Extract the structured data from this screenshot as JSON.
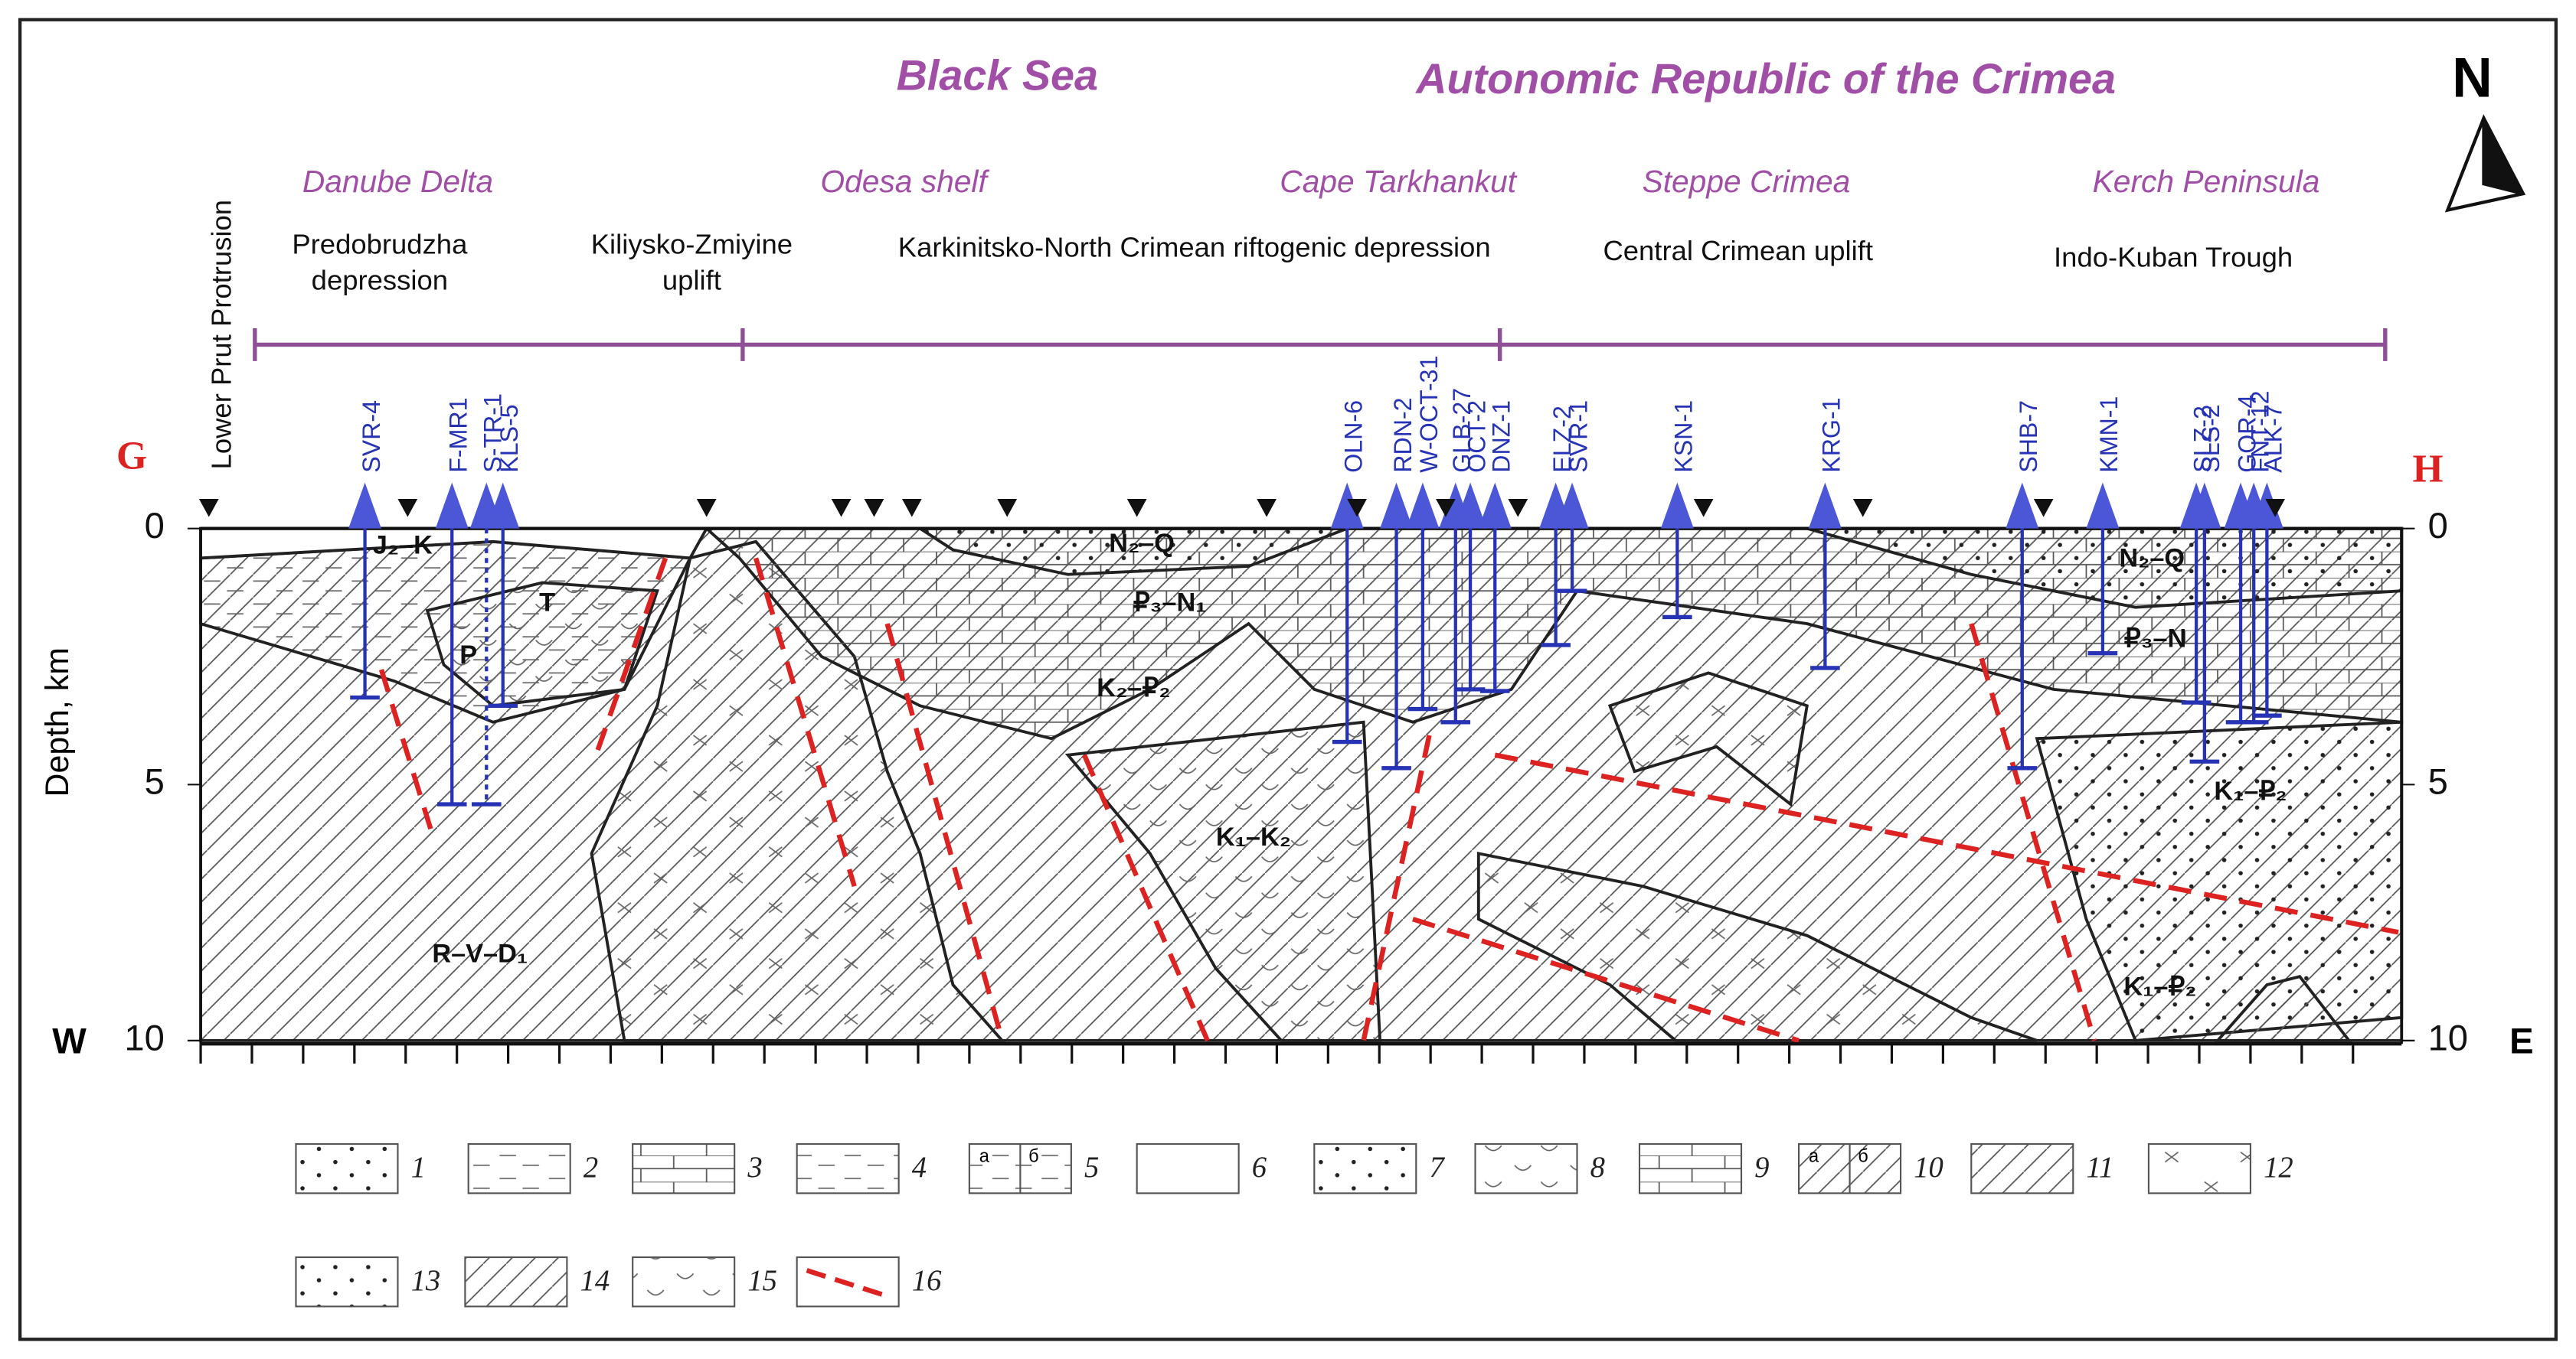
{
  "header": {
    "left": "Black Sea",
    "right": "Autonomic Republic of the Crimea",
    "north": "N"
  },
  "section_ends": {
    "start": "G",
    "end": "H"
  },
  "areas": [
    "Danube Delta",
    "Odesa shelf",
    "Cape Tarkhankut",
    "Steppe Crimea",
    "Kerch Peninsula"
  ],
  "structures": {
    "lower_prut": "Lower Prut Protrusion",
    "predobrudzha": [
      "Predobrudzha",
      "depression"
    ],
    "kiliysko": [
      "Kiliysko-Zmiyine",
      "uplift"
    ],
    "karkinitsko": "Karkinitsko-North Crimean riftogenic depression",
    "central": "Central Crimean uplift",
    "indo_kuban": "Indo-Kuban Trough"
  },
  "wells": [
    "SVR-4",
    "F-MR1",
    "S-TR-1",
    "KLS-5",
    "OLN-6",
    "RDN-2",
    "W-OCT-31",
    "GLB-27",
    "OCT-2",
    "DNZ-1",
    "ELZ-2",
    "SVR-1",
    "KSN-1",
    "KRG-1",
    "SHB-7",
    "KMN-1",
    "SLZ-2",
    "SLS-2",
    "GOR-4",
    "FNT-12",
    "ALK-7"
  ],
  "units": [
    "J₂–K",
    "T",
    "P",
    "N₂–Q",
    "₽₃–N₁",
    "K₂–₽₂",
    "K₁–K₂",
    "R–V–D₁",
    "N₂–Q",
    "₽₃–N",
    "K₁–₽₂",
    "K₁–₽₂"
  ],
  "axis": {
    "label": "Depth, km",
    "ticks": [
      0,
      5,
      10
    ],
    "west": "W",
    "east": "E"
  },
  "legend": {
    "numbers": [
      "1",
      "2",
      "3",
      "4",
      "5",
      "6",
      "7",
      "8",
      "9",
      "10",
      "11",
      "12",
      "13",
      "14",
      "15",
      "16"
    ],
    "sub_a": "а",
    "sub_b": "б"
  }
}
